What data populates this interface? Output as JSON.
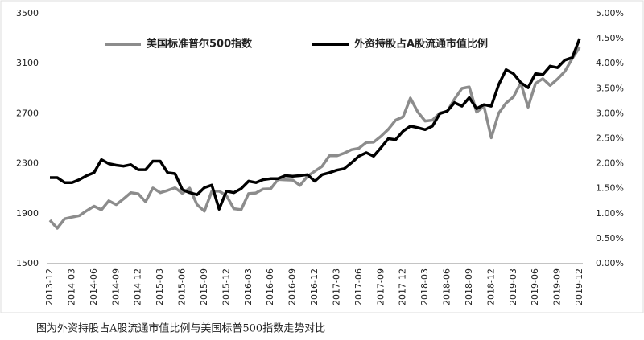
{
  "chart_data": {
    "type": "line",
    "caption": "图为外资持股占A股流通市值比例与美国标普500指数走势对比",
    "categories": [
      "2013-12",
      null,
      null,
      "2014-03",
      null,
      null,
      "2014-06",
      null,
      null,
      "2014-09",
      null,
      null,
      "2014-12",
      null,
      null,
      "2015-03",
      null,
      null,
      "2015-06",
      null,
      null,
      "2015-09",
      null,
      null,
      "2015-12",
      null,
      null,
      "2016-03",
      null,
      null,
      "2016-06",
      null,
      null,
      "2016-09",
      null,
      null,
      "2016-12",
      null,
      null,
      "2017-03",
      null,
      null,
      "2017-06",
      null,
      null,
      "2017-09",
      null,
      null,
      "2017-12",
      null,
      null,
      "2018-03",
      null,
      null,
      "2018-06",
      null,
      null,
      "2018-09",
      null,
      null,
      "2018-12",
      null,
      null,
      "2019-03",
      null,
      null,
      "2019-06",
      null,
      null,
      "2019-09",
      null,
      null,
      "2019-12"
    ],
    "series": [
      {
        "name": "美国标准普尔500指数",
        "color": "#8c8c8c",
        "axis": "y",
        "values": [
          1848,
          1783,
          1859,
          1872,
          1884,
          1924,
          1960,
          1931,
          2003,
          1972,
          2018,
          2068,
          2059,
          1995,
          2105,
          2068,
          2086,
          2107,
          2063,
          2104,
          1972,
          1920,
          2079,
          2080,
          2044,
          1940,
          1932,
          2060,
          2065,
          2097,
          2099,
          2174,
          2171,
          2168,
          2126,
          2199,
          2239,
          2279,
          2364,
          2363,
          2384,
          2412,
          2423,
          2470,
          2472,
          2519,
          2575,
          2648,
          2674,
          2824,
          2714,
          2641,
          2648,
          2705,
          2718,
          2816,
          2902,
          2914,
          2712,
          2760,
          2507,
          2704,
          2784,
          2834,
          2946,
          2752,
          2942,
          2980,
          2926,
          2977,
          3038,
          3141,
          3231
        ]
      },
      {
        "name": "外资持股占A股流通市值比例",
        "color": "#000000",
        "axis": "y2",
        "values": [
          1.72,
          1.72,
          1.62,
          1.62,
          1.68,
          1.76,
          1.82,
          2.08,
          2.0,
          1.97,
          1.95,
          1.98,
          1.88,
          1.88,
          2.05,
          2.05,
          1.82,
          1.8,
          1.48,
          1.42,
          1.38,
          1.52,
          1.57,
          1.09,
          1.45,
          1.42,
          1.5,
          1.65,
          1.62,
          1.68,
          1.7,
          1.7,
          1.76,
          1.75,
          1.76,
          1.78,
          1.65,
          1.78,
          1.82,
          1.87,
          1.9,
          2.02,
          2.15,
          2.22,
          2.15,
          2.32,
          2.5,
          2.48,
          2.65,
          2.75,
          2.72,
          2.68,
          2.75,
          3.0,
          3.05,
          3.22,
          3.15,
          3.32,
          3.1,
          3.18,
          3.15,
          3.58,
          3.88,
          3.8,
          3.62,
          3.52,
          3.8,
          3.78,
          3.95,
          3.92,
          4.07,
          4.12,
          4.5
        ]
      }
    ],
    "ylim": [
      1500,
      3500
    ],
    "yticks": [
      1500,
      1900,
      2300,
      2700,
      3100,
      3500
    ],
    "y2lim": [
      0,
      5
    ],
    "y2ticks": [
      {
        "value": 0,
        "label": "0.00%"
      },
      {
        "value": 0.5,
        "label": "0.50%"
      },
      {
        "value": 1,
        "label": "1.00%"
      },
      {
        "value": 1.5,
        "label": "1.50%"
      },
      {
        "value": 2,
        "label": "2.00%"
      },
      {
        "value": 2.5,
        "label": "2.50%"
      },
      {
        "value": 3,
        "label": "3.00%"
      },
      {
        "value": 3.5,
        "label": "3.50%"
      },
      {
        "value": 4,
        "label": "4.00%"
      },
      {
        "value": 4.5,
        "label": "4.50%"
      },
      {
        "value": 5,
        "label": "5.00%"
      }
    ]
  }
}
